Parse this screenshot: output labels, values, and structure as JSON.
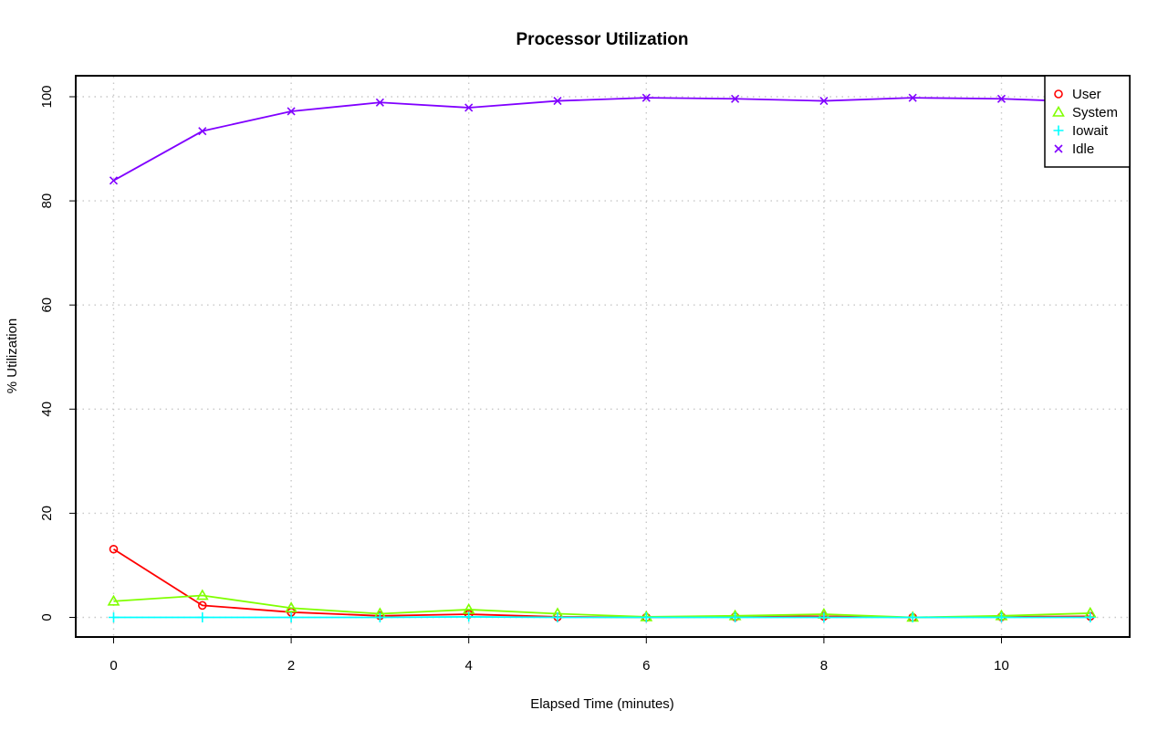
{
  "chart_data": {
    "type": "line",
    "title": "Processor Utilization",
    "xlabel": "Elapsed Time (minutes)",
    "ylabel": "% Utilization",
    "xlim": [
      0,
      11
    ],
    "ylim": [
      0,
      100
    ],
    "x_ticks": [
      0,
      2,
      4,
      6,
      8,
      10
    ],
    "y_ticks": [
      0,
      20,
      40,
      60,
      80,
      100
    ],
    "grid": true,
    "legend_position": "top-right",
    "x": [
      0,
      1,
      2,
      3,
      4,
      5,
      6,
      7,
      8,
      9,
      10,
      11
    ],
    "series": [
      {
        "name": "User",
        "color": "#ff0000",
        "marker": "circle",
        "values": [
          13.1,
          2.3,
          1.0,
          0.3,
          0.6,
          0.1,
          0.0,
          0.1,
          0.2,
          0.0,
          0.1,
          0.2
        ]
      },
      {
        "name": "System",
        "color": "#80ff00",
        "marker": "triangle",
        "values": [
          3.1,
          4.2,
          1.8,
          0.7,
          1.5,
          0.7,
          0.1,
          0.3,
          0.6,
          0.0,
          0.3,
          0.8
        ]
      },
      {
        "name": "Iowait",
        "color": "#00ffff",
        "marker": "plus",
        "values": [
          0.0,
          0.0,
          0.0,
          0.0,
          0.1,
          0.0,
          0.0,
          0.0,
          0.0,
          0.0,
          0.0,
          0.0
        ]
      },
      {
        "name": "Idle",
        "color": "#8000ff",
        "marker": "cross",
        "values": [
          83.9,
          93.4,
          97.2,
          98.9,
          97.9,
          99.2,
          99.8,
          99.6,
          99.2,
          99.8,
          99.6,
          99.0
        ]
      }
    ]
  }
}
